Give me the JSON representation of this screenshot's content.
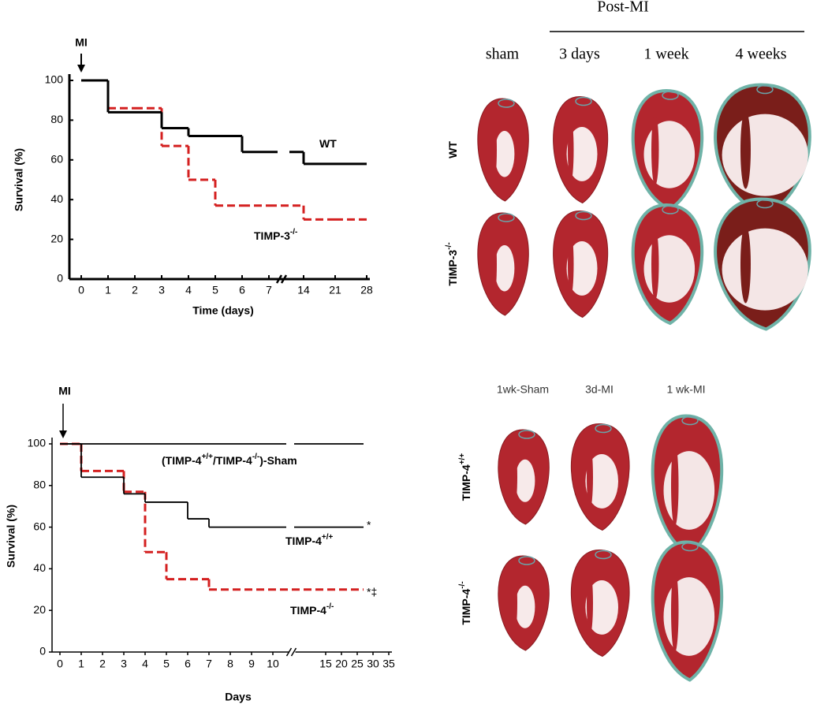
{
  "chart_data": [
    {
      "type": "step",
      "annotation": "MI",
      "ylabel": "Survival (%)",
      "xlabel": "Time (days)",
      "categories": [
        "0",
        "1",
        "2",
        "3",
        "4",
        "5",
        "6",
        "7",
        "14",
        "21",
        "28"
      ],
      "ylim": [
        0,
        100
      ],
      "yticks": [
        0,
        20,
        40,
        60,
        80,
        100
      ],
      "series": [
        {
          "name": "WT",
          "color": "#000000",
          "dashed": false,
          "values": [
            100,
            84,
            84,
            76,
            72,
            72,
            64,
            64,
            58,
            58,
            58
          ]
        },
        {
          "name": "TIMP-3",
          "name_sup": "-/-",
          "color": "#d42020",
          "dashed": true,
          "values": [
            100,
            86,
            86,
            67,
            50,
            37,
            37,
            37,
            30,
            30,
            30
          ]
        }
      ]
    },
    {
      "type": "step",
      "annotation": "MI",
      "ylabel": "Survival (%)",
      "xlabel": "Days",
      "xticks": [
        0,
        1,
        2,
        3,
        4,
        5,
        6,
        7,
        8,
        9,
        10,
        15,
        20,
        25,
        30,
        35
      ],
      "ylim": [
        0,
        100
      ],
      "yticks": [
        0,
        20,
        40,
        60,
        80,
        100
      ],
      "sham_label": [
        "(TIMP-4",
        "+/+",
        "/TIMP-4",
        "-/-",
        ")-Sham"
      ],
      "series": [
        {
          "name": "Sham",
          "color": "#000000",
          "dashed": false,
          "x": [
            0,
            27
          ],
          "values": [
            100,
            100
          ]
        },
        {
          "name": "TIMP-4",
          "name_sup": "+/+",
          "mark": "*",
          "color": "#000000",
          "dashed": false,
          "x": [
            0,
            1,
            3,
            4,
            6,
            7,
            27
          ],
          "values": [
            100,
            84,
            76,
            72,
            64,
            60,
            60
          ]
        },
        {
          "name": "TIMP-4",
          "name_sup": "-/-",
          "mark": "*‡",
          "color": "#d42020",
          "dashed": true,
          "x": [
            0,
            1,
            3,
            4,
            5,
            7,
            27
          ],
          "values": [
            100,
            87,
            77,
            48,
            35,
            30,
            30
          ]
        }
      ]
    }
  ],
  "histology_top": {
    "group": "Post-MI",
    "columns": [
      "sham",
      "3 days",
      "1 week",
      "4 weeks"
    ],
    "rows": [
      {
        "label": "WT",
        "sup": ""
      },
      {
        "label": "TIMP-3",
        "sup": "-/-"
      }
    ]
  },
  "histology_bottom": {
    "columns": [
      "1wk-Sham",
      "3d-MI",
      "1 wk-MI"
    ],
    "rows": [
      {
        "label": "TIMP-4",
        "sup": "+/+"
      },
      {
        "label": "TIMP-4",
        "sup": "-/-"
      }
    ]
  }
}
